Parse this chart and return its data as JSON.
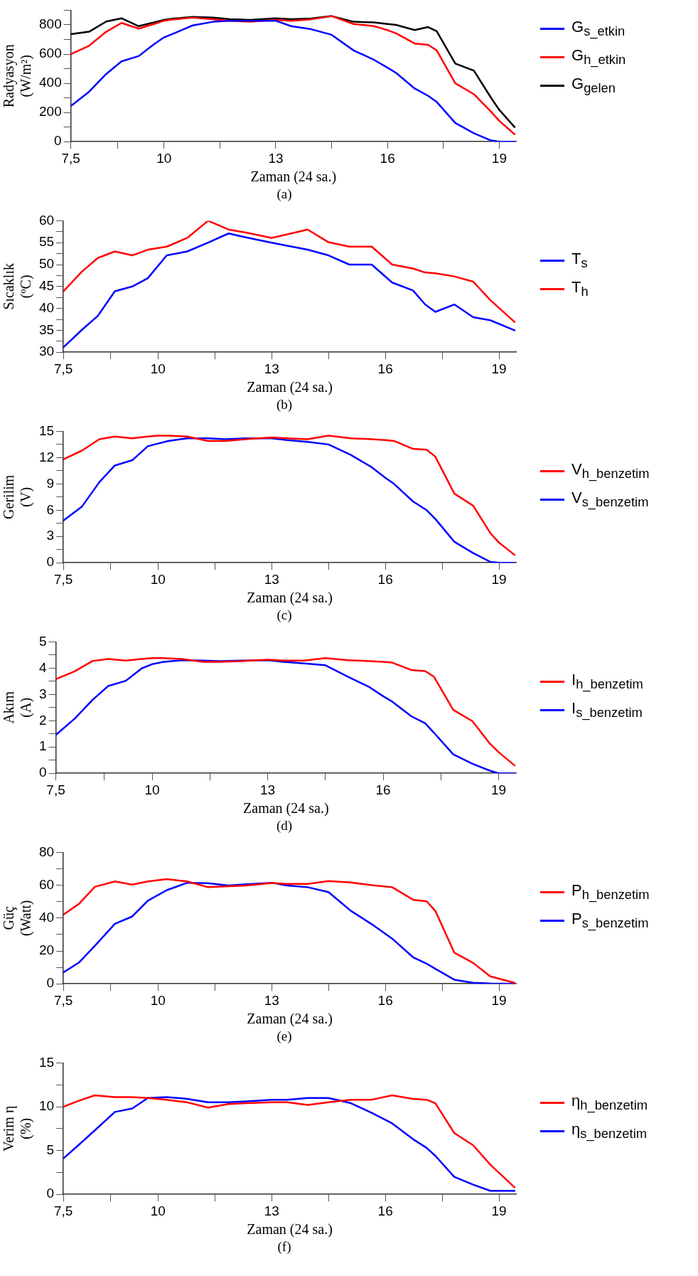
{
  "chart_data": [
    {
      "type": "line",
      "ylabel": "Radyasyon\n(W/m²)",
      "xlabel": "Zaman (24 sa.)",
      "annotations": [
        "(a)"
      ],
      "legend": "right",
      "marker": "none",
      "line_style": "solid",
      "x": [
        7.5,
        7.99,
        8.45,
        8.86,
        9.32,
        9.73,
        10,
        10.27,
        10.77,
        11.32,
        11.77,
        12.32,
        13,
        13.41,
        13.95,
        14.5,
        15.09,
        15.64,
        16,
        16.23,
        16.73,
        17.09,
        17.32,
        17.82,
        18.32,
        18.77,
        19,
        19.41
      ],
      "xlim": [
        7.5,
        19.45
      ],
      "xticks": [
        {
          "value": 7.5,
          "label": "7,5"
        },
        {
          "value": 8.75,
          "label": null
        },
        10,
        {
          "value": 11.5,
          "label": null
        },
        13,
        {
          "value": 14.5,
          "label": null
        },
        16,
        {
          "value": 17.5,
          "label": null
        },
        19
      ],
      "ylim": [
        0,
        900
      ],
      "yticks": [
        0,
        {
          "value": 100,
          "label": null
        },
        200,
        {
          "value": 300,
          "label": null
        },
        400,
        {
          "value": 500,
          "label": null
        },
        600,
        {
          "value": 700,
          "label": null
        },
        800,
        {
          "value": 900,
          "label": null
        }
      ],
      "series": [
        {
          "name": "G$_{s_etkin}$",
          "color": "#0000ff",
          "values": [
            244,
            342,
            464,
            550,
            586,
            667,
            714,
            742,
            796,
            821,
            828,
            828,
            828,
            791,
            770,
            732,
            625,
            560,
            507,
            471,
            364,
            314,
            272,
            128,
            58,
            9,
            0,
            0
          ]
        },
        {
          "name": "G$_{h_etkin}$",
          "color": "#ff0000",
          "values": [
            599,
            657,
            753,
            813,
            774,
            806,
            828,
            838,
            849,
            839,
            828,
            821,
            834,
            828,
            838,
            860,
            806,
            791,
            764,
            742,
            672,
            663,
            625,
            400,
            325,
            207,
            143,
            51
          ]
        },
        {
          "name": "G$_{gelen}$",
          "color": "#000000",
          "values": [
            736,
            753,
            823,
            845,
            791,
            817,
            834,
            843,
            854,
            850,
            839,
            834,
            845,
            839,
            843,
            860,
            821,
            817,
            806,
            800,
            764,
            785,
            757,
            535,
            486,
            304,
            218,
            100
          ]
        }
      ]
    },
    {
      "type": "line",
      "ylabel": "Sıcaklık\n(ºC)",
      "xlabel": "Zaman (24 sa.)",
      "annotations": [
        "(b)"
      ],
      "legend": "right",
      "marker": "none",
      "line_style": "solid",
      "x": [
        7.5,
        7.99,
        8.41,
        8.86,
        9.32,
        9.73,
        10.23,
        10.77,
        11.32,
        11.86,
        12.32,
        13,
        13.41,
        13.95,
        14.5,
        15.05,
        15.64,
        16.18,
        16.73,
        17.05,
        17.32,
        17.82,
        18.32,
        18.77,
        19.41
      ],
      "xlim": [
        7.5,
        19.45
      ],
      "xticks": [
        {
          "value": 7.5,
          "label": "7,5"
        },
        {
          "value": 8.75,
          "label": null
        },
        10,
        {
          "value": 11.5,
          "label": null
        },
        13,
        {
          "value": 14.5,
          "label": null
        },
        16,
        {
          "value": 17.5,
          "label": null
        },
        19
      ],
      "ylim": [
        30,
        60
      ],
      "yticks": [
        30,
        {
          "value": 32.5,
          "label": null
        },
        35,
        {
          "value": 37.5,
          "label": null
        },
        40,
        {
          "value": 42.5,
          "label": null
        },
        45,
        {
          "value": 47.5,
          "label": null
        },
        50,
        {
          "value": 52.5,
          "label": null
        },
        55,
        {
          "value": 57.5,
          "label": null
        },
        60
      ],
      "series": [
        {
          "name": "T$_{s}$",
          "color": "#0000ff",
          "values": [
            31.1,
            35.1,
            38.3,
            43.9,
            45,
            46.9,
            52.1,
            53,
            55,
            57.1,
            56.2,
            55,
            54.3,
            53.4,
            52.1,
            50,
            50,
            45.9,
            44.1,
            40.9,
            39.2,
            40.9,
            38,
            37.3,
            35
          ]
        },
        {
          "name": "T$_{h}$",
          "color": "#ff0000",
          "values": [
            43.9,
            48.4,
            51.5,
            53,
            52.1,
            53.4,
            54.1,
            56.1,
            60,
            58,
            57.3,
            56.1,
            56.9,
            58,
            55.1,
            54.1,
            54.1,
            50,
            49.1,
            48.2,
            48,
            47.3,
            46.1,
            41.9,
            36.9
          ]
        }
      ]
    },
    {
      "type": "line",
      "ylabel": "Gerilim\n(V)",
      "xlabel": "Zaman (24 sa.)",
      "annotations": [
        "(c)"
      ],
      "legend": "right",
      "marker": "none",
      "line_style": "solid",
      "x": [
        7.5,
        7.99,
        8.45,
        8.86,
        9.32,
        9.73,
        10,
        10.27,
        10.77,
        11.32,
        11.77,
        12.32,
        13,
        13.41,
        13.95,
        14.5,
        15.09,
        15.64,
        16,
        16.23,
        16.73,
        17.09,
        17.32,
        17.82,
        18.32,
        18.77,
        19,
        19.41
      ],
      "xlim": [
        7.5,
        19.45
      ],
      "xticks": [
        {
          "value": 7.5,
          "label": "7,5"
        },
        {
          "value": 8.75,
          "label": null
        },
        10,
        {
          "value": 11.5,
          "label": null
        },
        13,
        {
          "value": 14.5,
          "label": null
        },
        16,
        {
          "value": 17.5,
          "label": null
        },
        19
      ],
      "ylim": [
        0,
        15
      ],
      "yticks": [
        0,
        {
          "value": 1.5,
          "label": null
        },
        3,
        {
          "value": 4.5,
          "label": null
        },
        6,
        {
          "value": 7.5,
          "label": null
        },
        9,
        {
          "value": 10.5,
          "label": null
        },
        12,
        {
          "value": 13.5,
          "label": null
        },
        15
      ],
      "series": [
        {
          "name": "V$_{h_benzetim}$",
          "color": "#ff0000",
          "values": [
            11.8,
            12.8,
            14.1,
            14.4,
            14.2,
            14.4,
            14.5,
            14.5,
            14.4,
            13.9,
            13.9,
            14.1,
            14.3,
            14.2,
            14.1,
            14.5,
            14.2,
            14.1,
            14.0,
            13.9,
            13.0,
            12.9,
            12.1,
            7.9,
            6.5,
            3.4,
            2.3,
            0.9
          ]
        },
        {
          "name": "V$_{s_benzetim}$",
          "color": "#0000ff",
          "values": [
            4.8,
            6.4,
            9.2,
            11.1,
            11.7,
            13.3,
            13.6,
            13.9,
            14.2,
            14.2,
            14.1,
            14.2,
            14.2,
            14.0,
            13.8,
            13.5,
            12.3,
            10.9,
            9.7,
            9.0,
            7.0,
            6.0,
            5.0,
            2.4,
            1.1,
            0.1,
            0,
            0
          ]
        }
      ]
    },
    {
      "type": "line",
      "ylabel": "Akım\n(A)",
      "xlabel": "Zaman (24 sa.)",
      "annotations": [
        "(d)"
      ],
      "legend": "right",
      "marker": "none",
      "line_style": "solid",
      "x": [
        7.5,
        7.99,
        8.45,
        8.86,
        9.32,
        9.73,
        10,
        10.27,
        10.77,
        11.32,
        11.77,
        12.32,
        13,
        13.41,
        13.95,
        14.5,
        15.09,
        15.64,
        16,
        16.23,
        16.73,
        17.09,
        17.32,
        17.82,
        18.32,
        18.77,
        19,
        19.41
      ],
      "xlim": [
        7.5,
        19.45
      ],
      "xticks": [
        {
          "value": 7.5,
          "label": "7,5"
        },
        {
          "value": 8.75,
          "label": null
        },
        10,
        {
          "value": 11.5,
          "label": null
        },
        13,
        {
          "value": 14.5,
          "label": null
        },
        16,
        {
          "value": 17.5,
          "label": null
        },
        19
      ],
      "ylim": [
        0,
        5
      ],
      "yticks": [
        0,
        {
          "value": 0.5,
          "label": null
        },
        1,
        {
          "value": 1.5,
          "label": null
        },
        2,
        {
          "value": 2.5,
          "label": null
        },
        3,
        {
          "value": 3.5,
          "label": null
        },
        4,
        {
          "value": 4.5,
          "label": null
        },
        5
      ],
      "series": [
        {
          "name": "I$_{h_benzetim}$",
          "color": "#ff0000",
          "values": [
            3.58,
            3.88,
            4.27,
            4.35,
            4.29,
            4.35,
            4.38,
            4.38,
            4.35,
            4.24,
            4.24,
            4.27,
            4.32,
            4.29,
            4.29,
            4.38,
            4.3,
            4.27,
            4.24,
            4.21,
            3.93,
            3.89,
            3.67,
            2.41,
            1.98,
            1.13,
            0.8,
            0.3
          ]
        },
        {
          "name": "I$_{s_benzetim}$",
          "color": "#0000ff",
          "values": [
            1.46,
            2.08,
            2.79,
            3.32,
            3.52,
            3.99,
            4.15,
            4.23,
            4.3,
            4.29,
            4.27,
            4.29,
            4.3,
            4.24,
            4.18,
            4.11,
            3.67,
            3.28,
            2.93,
            2.73,
            2.17,
            1.9,
            1.54,
            0.72,
            0.36,
            0.1,
            0,
            0
          ]
        }
      ]
    },
    {
      "type": "line",
      "ylabel": "Güç\n(Watt)",
      "xlabel": "Zaman (24 sa.)",
      "annotations": [
        "(e)"
      ],
      "legend": "right",
      "marker": "none",
      "line_style": "solid",
      "x": [
        7.5,
        7.92,
        8.33,
        8.86,
        9.32,
        9.73,
        10.23,
        10.77,
        11.32,
        11.86,
        12.32,
        13,
        13.41,
        13.95,
        14.5,
        15.09,
        15.64,
        16.18,
        16.73,
        17.09,
        17.32,
        17.82,
        18.32,
        18.77,
        19.41
      ],
      "xlim": [
        7.5,
        19.45
      ],
      "xticks": [
        {
          "value": 7.5,
          "label": "7,5"
        },
        {
          "value": 8.75,
          "label": null
        },
        10,
        {
          "value": 11.5,
          "label": null
        },
        13,
        {
          "value": 14.5,
          "label": null
        },
        16,
        {
          "value": 17.5,
          "label": null
        },
        19
      ],
      "ylim": [
        0,
        80
      ],
      "yticks": [
        0,
        {
          "value": 10,
          "label": null
        },
        20,
        {
          "value": 30,
          "label": null
        },
        40,
        {
          "value": 50,
          "label": null
        },
        60,
        {
          "value": 70,
          "label": null
        },
        80
      ],
      "series": [
        {
          "name": "P$_{h_benzetim}$",
          "color": "#ff0000",
          "values": [
            42.1,
            48.8,
            59,
            62.3,
            60.4,
            62.3,
            63.7,
            62.3,
            58.8,
            59.4,
            59.8,
            61.3,
            60.8,
            60.8,
            62.5,
            61.7,
            60,
            58.8,
            51.2,
            50.2,
            44.4,
            19,
            12.7,
            4.5,
            0.6
          ]
        },
        {
          "name": "P$_{s_benzetim}$",
          "color": "#0000ff",
          "values": [
            6.9,
            13.1,
            23.1,
            36.5,
            41,
            50.6,
            57,
            61.5,
            61.2,
            59.8,
            60.6,
            61.5,
            59.8,
            58.8,
            55.8,
            44.4,
            36.3,
            27.5,
            16.2,
            12.3,
            9.1,
            2.5,
            0.6,
            0.2,
            0
          ]
        }
      ]
    },
    {
      "type": "line",
      "ylabel": "Verim η\n(%)",
      "xlabel": "Zaman (24 sa.)",
      "annotations": [
        "(f)"
      ],
      "legend": "right",
      "marker": "none",
      "line_style": "solid",
      "x": [
        7.5,
        7.92,
        8.33,
        8.86,
        9.32,
        9.73,
        10.23,
        10.77,
        11.32,
        11.86,
        12.32,
        13,
        13.41,
        13.95,
        14.5,
        15.09,
        15.64,
        16.18,
        16.73,
        17.09,
        17.32,
        17.82,
        18.32,
        18.77,
        19.41
      ],
      "xlim": [
        7.5,
        19.45
      ],
      "xticks": [
        {
          "value": 7.5,
          "label": "7,5"
        },
        {
          "value": 8.75,
          "label": null
        },
        10,
        {
          "value": 11.5,
          "label": null
        },
        13,
        {
          "value": 14.5,
          "label": null
        },
        16,
        {
          "value": 17.5,
          "label": null
        },
        19
      ],
      "ylim": [
        0,
        15
      ],
      "yticks": [
        0,
        {
          "value": 2.5,
          "label": null
        },
        5,
        {
          "value": 7.5,
          "label": null
        },
        10,
        {
          "value": 12.5,
          "label": null
        },
        15
      ],
      "series": [
        {
          "name": "η$_{h_benzetim}$",
          "color": "#ff0000",
          "values": [
            10,
            10.7,
            11.3,
            11.1,
            11.1,
            11,
            10.8,
            10.5,
            9.9,
            10.3,
            10.4,
            10.5,
            10.5,
            10.2,
            10.5,
            10.8,
            10.8,
            11.3,
            10.9,
            10.8,
            10.4,
            7,
            5.6,
            3.4,
            0.8
          ]
        },
        {
          "name": "η$_{s_benzetim}$",
          "color": "#0000ff",
          "values": [
            4.1,
            5.7,
            7.3,
            9.4,
            9.8,
            11,
            11.1,
            10.9,
            10.5,
            10.5,
            10.6,
            10.8,
            10.8,
            11,
            11,
            10.4,
            9.3,
            8.1,
            6.3,
            5.3,
            4.4,
            2,
            1.1,
            0.4,
            0.4
          ]
        }
      ]
    }
  ]
}
